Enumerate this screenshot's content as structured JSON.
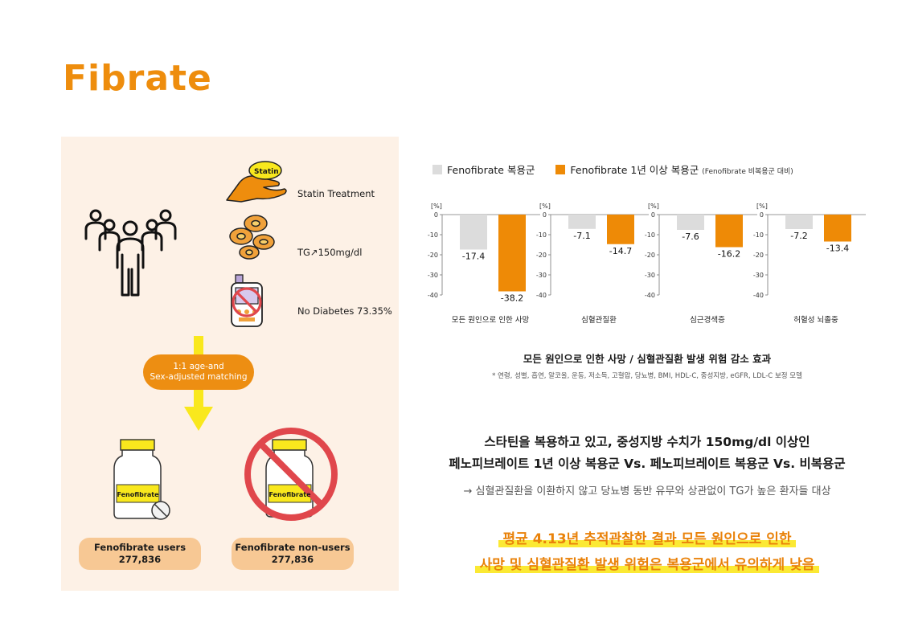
{
  "page": {
    "title": "Fibrate"
  },
  "infographic": {
    "statin_badge": "Statin",
    "criteria": [
      {
        "icon": "statin-hand-icon",
        "label": "Statin Treatment"
      },
      {
        "icon": "tg-cells-icon",
        "label": "TG↗150mg/dl"
      },
      {
        "icon": "no-diabetes-icon",
        "label": "No Diabetes 73.35%"
      }
    ],
    "matching": {
      "line1": "1:1 age-and",
      "line2": "Sex-adjusted matching"
    },
    "bottle_label": "Fenofibrate",
    "groups": [
      {
        "label": "Fenofibrate users",
        "count": "277,836"
      },
      {
        "label": "Fenofibrate non-users",
        "count": "277,836"
      }
    ]
  },
  "legend": {
    "gray": "Fenofibrate 복용군",
    "orange": "Fenofibrate 1년 이상 복용군",
    "orange_note": "(Fenofibrate 비복용군 대비)"
  },
  "chart_data": {
    "type": "bar",
    "unit_label": "[%]",
    "ylim": [
      -40,
      0
    ],
    "yticks": [
      0,
      -10,
      -20,
      -30,
      -40
    ],
    "colors": {
      "gray": "#dcdcdc",
      "orange": "#ee8a06"
    },
    "panels": [
      {
        "category": "모든 원인으로 인한 사망",
        "values": [
          -17.4,
          -38.2
        ],
        "labels": [
          "-17.4",
          "-38.2"
        ]
      },
      {
        "category": "심혈관질환",
        "values": [
          -7.1,
          -14.7
        ],
        "labels": [
          "-7.1",
          "-14.7"
        ]
      },
      {
        "category": "심근경색증",
        "values": [
          -7.6,
          -16.2
        ],
        "labels": [
          "-7.6",
          "-16.2"
        ]
      },
      {
        "category": "허혈성 뇌졸중",
        "values": [
          -7.2,
          -13.4
        ],
        "labels": [
          "-7.2",
          "-13.4"
        ]
      }
    ],
    "title": "모든 원인으로 인한 사망 / 심혈관질환 발생 위험 감소 효과",
    "footnote": "* 연령, 성별, 흡연, 알코올, 운동, 저소득, 고혈압, 당뇨병, BMI, HDL-C, 중성지방, eGFR, LDL-C 보정 모델"
  },
  "summary": {
    "line1": "스타틴을 복용하고 있고, 중성지방 수치가 150mg/dl 이상인",
    "line2": "페노피브레이트 1년 이상 복용군 Vs. 페노피브레이트 복용군 Vs. 비복용군",
    "note": "→ 심혈관질환을 이환하지 않고 당뇨병 동반 유무와 상관없이 TG가 높은 환자들 대상",
    "highlight1": "평균 4.13년 추적관찰한 결과 모든 원인으로 인한",
    "highlight2": "사망 및 심혈관질환 발생 위험은 복용군에서 유의하게 낮음"
  }
}
